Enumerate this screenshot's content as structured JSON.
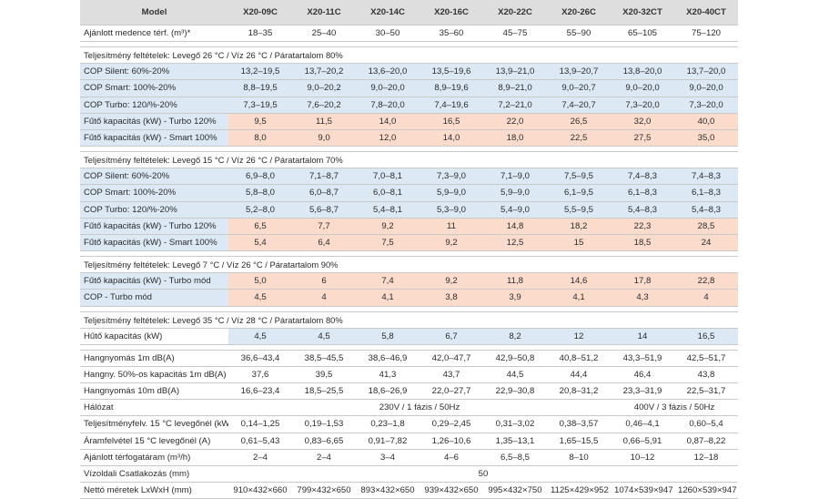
{
  "header": {
    "model_label": "Model",
    "models": [
      "X20-09C",
      "X20-11C",
      "X20-14C",
      "X20-16C",
      "X20-22C",
      "X20-26C",
      "X20-32CT",
      "X20-40CT"
    ]
  },
  "pool_volume": {
    "label": "Ajánlott medence térf. (m³)*",
    "values": [
      "18–35",
      "25–40",
      "30–50",
      "35–60",
      "45–75",
      "55–90",
      "65–105",
      "75–120"
    ]
  },
  "section1": {
    "title": "Teljesítmény feltételek: Levegő 26 °C / Víz 26 °C / Páratartalom 80%",
    "rows": [
      {
        "label": "COP Silent: 60%-20%",
        "values": [
          "13,2–19,5",
          "13,7–20,2",
          "13,6–20,0",
          "13,5–19,6",
          "13,9–21,0",
          "13,9–20,7",
          "13,8–20,0",
          "13,7–20,0"
        ]
      },
      {
        "label": "COP Smart: 100%-20%",
        "values": [
          "8,8–19,5",
          "9,0–20,2",
          "9,0–20,0",
          "8,9–19,6",
          "8,9–21,0",
          "9,0–20,7",
          "9,0–20,0",
          "9,0–20,0"
        ]
      },
      {
        "label": "COP Turbo: 120/%-20%",
        "values": [
          "7,3–19,5",
          "7,6–20,2",
          "7,8–20,0",
          "7,4–19,6",
          "7,2–21,0",
          "7,4–20,7",
          "7,3–20,0",
          "7,3–20,0"
        ]
      },
      {
        "label": "Fűtő kapacitás (kW) - Turbo 120%",
        "values": [
          "9,5",
          "11,5",
          "14,0",
          "16,5",
          "22,0",
          "26,5",
          "32,0",
          "40,0"
        ]
      },
      {
        "label": "Fűtő kapacitás (kW) - Smart 100%",
        "values": [
          "8,0",
          "9,0",
          "12,0",
          "14,0",
          "18,0",
          "22,5",
          "27,5",
          "35,0"
        ]
      }
    ]
  },
  "section2": {
    "title": "Teljesítmény feltételek: Levegő 15 °C / Víz 26 °C / Páratartalom 70%",
    "rows": [
      {
        "label": "COP Silent: 60%-20%",
        "values": [
          "6,9–8,0",
          "7,1–8,7",
          "7,0–8,1",
          "7,3–9,0",
          "7,1–9,0",
          "7,5–9,5",
          "7,4–8,3",
          "7,4–8,3"
        ]
      },
      {
        "label": "COP Smart: 100%-20%",
        "values": [
          "5,8–8,0",
          "6,0–8,7",
          "6,0–8,1",
          "5,9–9,0",
          "5,9–9,0",
          "6,1–9,5",
          "6,1–8,3",
          "6,1–8,3"
        ]
      },
      {
        "label": "COP Turbo: 120/%-20%",
        "values": [
          "5,2–8,0",
          "5,6–8,7",
          "5,4–8,1",
          "5,3–9,0",
          "5,4–9,0",
          "5,5–9,5",
          "5,4–8,3",
          "5,4–8,3"
        ]
      },
      {
        "label": "Fűtő kapacitás (kW) - Turbo 120%",
        "values": [
          "6,5",
          "7,7",
          "9,2",
          "11",
          "14,8",
          "18,2",
          "22,3",
          "28,5"
        ]
      },
      {
        "label": "Fűtő kapacitás (kW) - Smart 100%",
        "values": [
          "5,4",
          "6,4",
          "7,5",
          "9,2",
          "12,5",
          "15",
          "18,5",
          "24"
        ]
      }
    ]
  },
  "section3": {
    "title": "Teljesítmény feltételek: Levegő 7 °C / Víz 26 °C / Páratartalom 90%",
    "rows": [
      {
        "label": "Fűtő kapacitás (kW) - Turbo mód",
        "values": [
          "5,0",
          "6",
          "7,4",
          "9,2",
          "11,8",
          "14,6",
          "17,8",
          "22,8"
        ]
      },
      {
        "label": "COP - Turbo mód",
        "values": [
          "4,5",
          "4",
          "4,1",
          "3,8",
          "3,9",
          "4,1",
          "4,3",
          "4"
        ]
      }
    ]
  },
  "section4": {
    "title": "Teljesítmény feltételek: Levegő 35 °C / Víz 28 °C / Páratartalom 80%",
    "rows": [
      {
        "label": "Hűtő kapacitás (kW)",
        "values": [
          "4,5",
          "4,5",
          "5,8",
          "6,7",
          "8,2",
          "12",
          "14",
          "16,5"
        ]
      }
    ]
  },
  "general": {
    "noise1m": {
      "label": "Hangnyomás 1m dB(A)",
      "values": [
        "36,6–43,4",
        "38,5–45,5",
        "38,6–46,9",
        "42,0–47,7",
        "42,9–50,8",
        "40,8–51,2",
        "43,3–51,9",
        "42,5–51,7"
      ]
    },
    "noise50": {
      "label": "Hangny. 50%-os kapacitás 1m dB(A)",
      "values": [
        "37,6",
        "39,5",
        "41,3",
        "43,7",
        "44,5",
        "44,4",
        "46,4",
        "43,8"
      ]
    },
    "noise10m": {
      "label": "Hangnyomás 10m dB(A)",
      "values": [
        "16,6–23,4",
        "18,5–25,5",
        "18,6–26,9",
        "22,0–27,7",
        "22,9–30,8",
        "20,8–31,2",
        "23,3–31,9",
        "22,5–31,7"
      ]
    },
    "network": {
      "label": "Hálózat",
      "single_phase": "230V / 1 fázis / 50Hz",
      "three_phase": "400V / 3 fázis / 50Hz"
    },
    "power": {
      "label": "Teljesítményfelv. 15 °C levegőnél (kW)",
      "values": [
        "0,14–1,25",
        "0,19–1,53",
        "0,23–1,8",
        "0,29–2,45",
        "0,31–3,02",
        "0,38–3,57",
        "0,46–4,1",
        "0,60–5,4"
      ]
    },
    "current": {
      "label": "Áramfelvétel 15 °C levegőnél (A)",
      "values": [
        "0,61–5,43",
        "0,83–6,65",
        "0,91–7,82",
        "1,26–10,6",
        "1,35–13,1",
        "1,65–15,5",
        "0,66–5,91",
        "0,87–8,22"
      ]
    },
    "flow": {
      "label": "Ajánlott térfogatáram (m³/h)",
      "values": [
        "2–4",
        "2–4",
        "3–4",
        "4–6",
        "6,5–8,5",
        "8–10",
        "10–12",
        "12–18"
      ]
    },
    "water_conn": {
      "label": "Vízoldali Csatlakozás (mm)",
      "value": "50"
    },
    "dims": {
      "label": "Nettó méretek LxWxH (mm)",
      "values": [
        "910×432×660",
        "799×432×650",
        "893×432×650",
        "939×432×650",
        "995×432×750",
        "1125×429×952",
        "1074×539×947",
        "1260×539×947"
      ]
    }
  },
  "colors": {
    "header_bg": "#dedede",
    "blue": "#dce9f5",
    "peach": "#fbdccc"
  }
}
